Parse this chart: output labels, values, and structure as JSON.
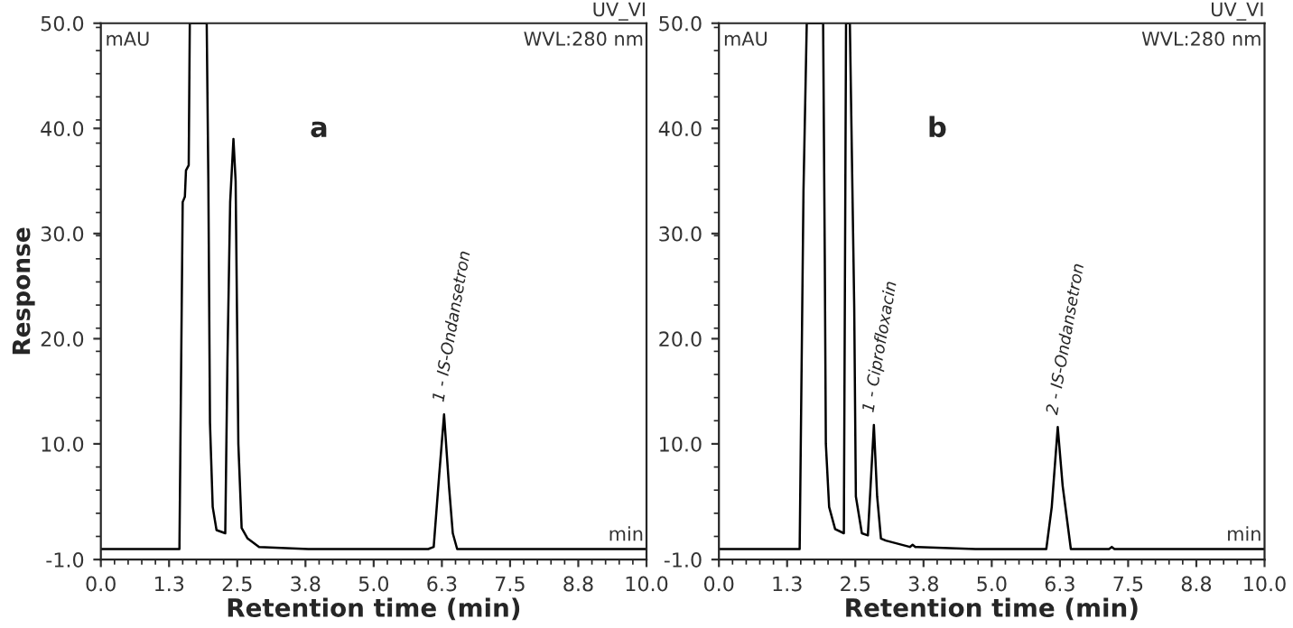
{
  "chart_data": [
    {
      "type": "line",
      "title": "a",
      "xlabel": "Retention time (min)",
      "ylabel": "Response",
      "xlim": [
        0,
        10
      ],
      "ylim": [
        -1,
        50
      ],
      "xticks": [
        {
          "value": 0,
          "label": "0.0"
        },
        {
          "value": 1.25,
          "label": "1.3"
        },
        {
          "value": 2.5,
          "label": "2.5"
        },
        {
          "value": 3.75,
          "label": "3.8"
        },
        {
          "value": 5,
          "label": "5.0"
        },
        {
          "value": 6.25,
          "label": "6.3"
        },
        {
          "value": 7.5,
          "label": "7.5"
        },
        {
          "value": 8.75,
          "label": "8.8"
        },
        {
          "value": 10,
          "label": "10.0"
        }
      ],
      "yticks": [
        {
          "value": -1,
          "label": "-1.0"
        },
        {
          "value": 10,
          "label": "10.0"
        },
        {
          "value": 20,
          "label": "20.0"
        },
        {
          "value": 30,
          "label": "30.0"
        },
        {
          "value": 40,
          "label": "40.0"
        },
        {
          "value": 50,
          "label": "50.0"
        }
      ],
      "series": [
        {
          "color": "#000000",
          "x": [
            0,
            1.44,
            1.5,
            1.54,
            1.56,
            1.61,
            1.63,
            1.94,
            1.97,
            2.0,
            2.05,
            2.12,
            2.28,
            2.32,
            2.37,
            2.43,
            2.47,
            2.52,
            2.58,
            2.69,
            2.9,
            3.8,
            5.0,
            6.0,
            6.1,
            6.2,
            6.29,
            6.38,
            6.45,
            6.53,
            7.0,
            10
          ],
          "values": [
            0,
            0,
            33,
            33.5,
            36,
            36.5,
            50,
            50,
            35,
            12,
            4,
            1.8,
            1.5,
            18,
            33,
            39,
            35,
            10,
            2,
            1.0,
            0.2,
            0,
            0,
            0,
            0.2,
            7,
            12.8,
            6,
            1.5,
            0,
            0,
            0
          ]
        }
      ],
      "annotations": [
        "UV_VI",
        "WVL:280 nm",
        "mAU",
        "min",
        {
          "text": "1 - IS-Ondansetron",
          "x": 6.29,
          "y": 12.8
        }
      ]
    },
    {
      "type": "line",
      "title": "b",
      "xlabel": "Retention time (min)",
      "xlim": [
        0,
        10
      ],
      "ylim": [
        -1,
        50
      ],
      "xticks": [
        {
          "value": 0,
          "label": "0.0"
        },
        {
          "value": 1.25,
          "label": "1.3"
        },
        {
          "value": 2.5,
          "label": "2.5"
        },
        {
          "value": 3.75,
          "label": "3.8"
        },
        {
          "value": 5,
          "label": "5.0"
        },
        {
          "value": 6.25,
          "label": "6.3"
        },
        {
          "value": 7.5,
          "label": "7.5"
        },
        {
          "value": 8.75,
          "label": "8.8"
        },
        {
          "value": 10,
          "label": "10.0"
        }
      ],
      "yticks": [
        {
          "value": -1,
          "label": "-1.0"
        },
        {
          "value": 10,
          "label": "10.0"
        },
        {
          "value": 20,
          "label": "20.0"
        },
        {
          "value": 30,
          "label": "30.0"
        },
        {
          "value": 40,
          "label": "40.0"
        },
        {
          "value": 50,
          "label": "50.0"
        }
      ],
      "series": [
        {
          "color": "#000000",
          "x": [
            0,
            1.48,
            1.55,
            1.61,
            1.91,
            1.94,
            1.96,
            2.02,
            2.13,
            2.29,
            2.33,
            2.4,
            2.48,
            2.51,
            2.62,
            2.73,
            2.78,
            2.84,
            2.9,
            2.97,
            3.06,
            3.5,
            3.55,
            3.6,
            4.7,
            6.0,
            6.1,
            6.21,
            6.3,
            6.45,
            7.15,
            7.2,
            7.25,
            10
          ],
          "values": [
            0,
            0,
            34,
            50,
            50,
            28,
            10,
            4,
            1.9,
            1.5,
            50,
            50,
            23,
            5,
            1.5,
            1.3,
            6,
            11.8,
            5,
            1.0,
            0.8,
            0.2,
            0.4,
            0.2,
            0,
            0,
            4,
            11.6,
            6,
            0,
            0,
            0.2,
            0,
            0
          ]
        }
      ],
      "annotations": [
        "UV_VI",
        "WVL:280 nm",
        "mAU",
        "min",
        {
          "text": "1 - Ciprofloxacin",
          "x": 2.84,
          "y": 11.8
        },
        {
          "text": "2 - IS-Ondansetron",
          "x": 6.21,
          "y": 11.6
        }
      ]
    }
  ]
}
